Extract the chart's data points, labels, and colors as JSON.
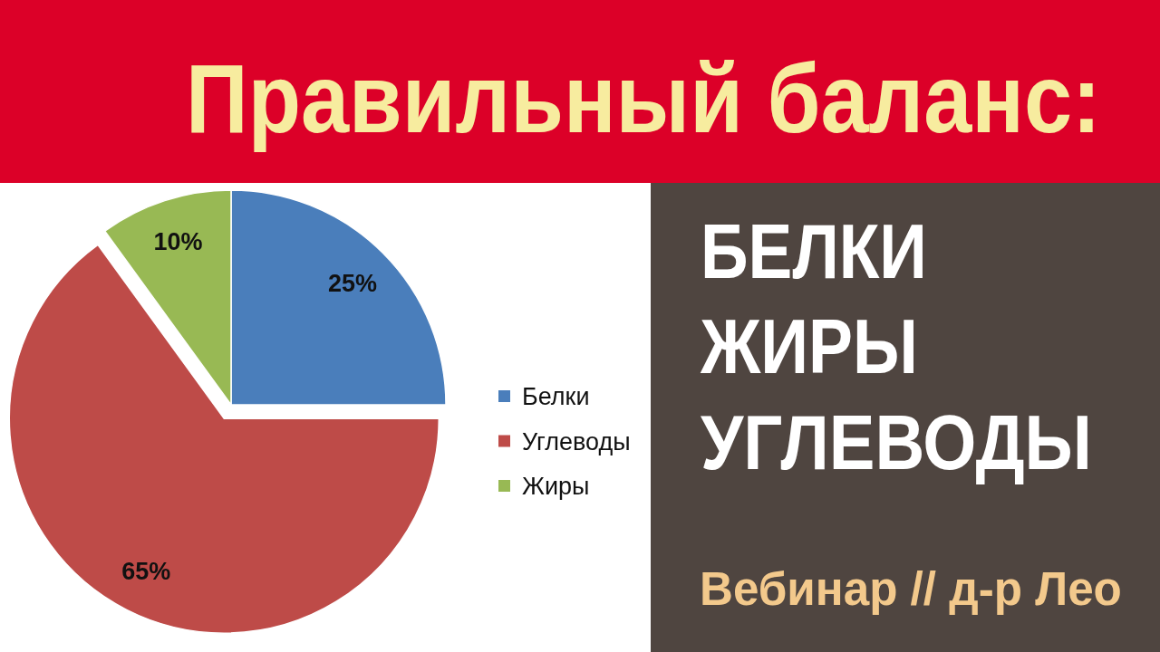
{
  "chart_data": {
    "type": "pie",
    "title": "Правильный баланс:",
    "categories": [
      "Белки",
      "Углеводы",
      "Жиры"
    ],
    "values": [
      25,
      65,
      10
    ],
    "colors": [
      "#4a7ebb",
      "#be4b48",
      "#98b954"
    ],
    "value_labels": [
      "25%",
      "65%",
      "10%"
    ],
    "legend": "right",
    "annotations": [
      "БЕЛКИ",
      "ЖИРЫ",
      "УГЛЕВОДЫ",
      "Вебинар // д-р Лео"
    ]
  }
}
